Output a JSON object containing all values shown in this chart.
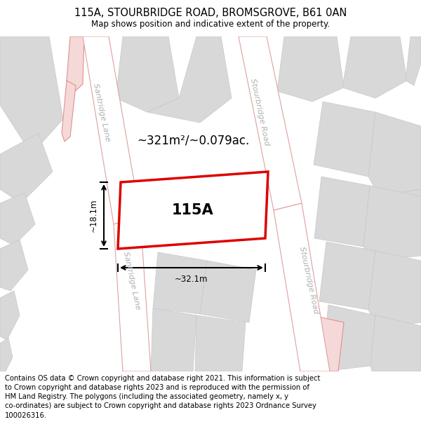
{
  "title": "115A, STOURBRIDGE ROAD, BROMSGROVE, B61 0AN",
  "subtitle": "Map shows position and indicative extent of the property.",
  "footer_line1": "Contains OS data © Crown copyright and database right 2021. This information is subject",
  "footer_line2": "to Crown copyright and database rights 2023 and is reproduced with the permission of",
  "footer_line3": "HM Land Registry. The polygons (including the associated geometry, namely x, y",
  "footer_line4": "co-ordinates) are subject to Crown copyright and database rights 2023 Ordnance Survey",
  "footer_line5": "100026316.",
  "area_label": "~321m²/~0.079ac.",
  "property_label": "115A",
  "dim_width": "~32.1m",
  "dim_height": "~18.1m",
  "map_bg": "#ebebeb",
  "road_fill": "#ffffff",
  "road_stroke": "#e0a0a0",
  "building_fill": "#d8d8d8",
  "building_stroke": "#c8c8c8",
  "pink_fill": "#f5d8d8",
  "pink_stroke": "#e09090",
  "property_fill": "#ffffff",
  "property_stroke": "#dd0000",
  "dim_color": "#000000",
  "road_label_color": "#b0b0b0",
  "title_fontsize": 10.5,
  "subtitle_fontsize": 8.5,
  "footer_fontsize": 7.2,
  "label_fontsize": 15,
  "area_fontsize": 12,
  "road_label_fontsize": 8
}
